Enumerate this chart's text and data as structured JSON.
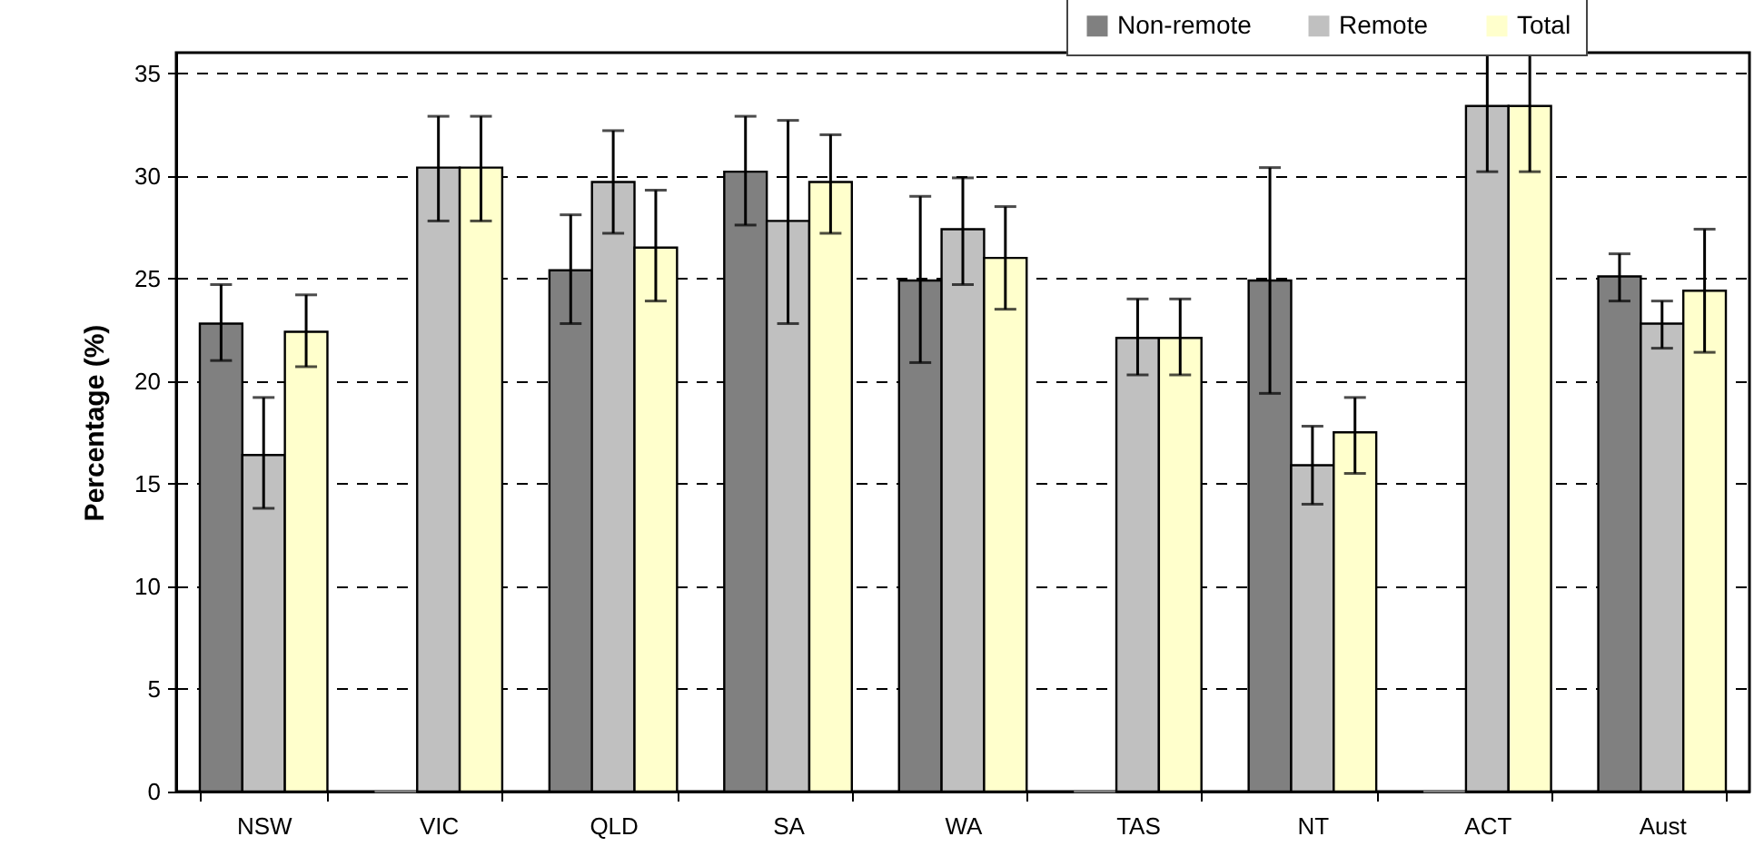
{
  "chart_data": {
    "type": "bar",
    "ylabel": "Percentage (%)",
    "categories": [
      "NSW",
      "VIC",
      "QLD",
      "SA",
      "WA",
      "TAS",
      "NT",
      "ACT",
      "Aust"
    ],
    "series": [
      {
        "name": "Non-remote",
        "color": "#808080",
        "values": [
          22.8,
          0,
          25.4,
          30.2,
          24.9,
          0,
          24.9,
          0,
          25.1
        ],
        "errors": [
          [
            21.0,
            24.7
          ],
          null,
          [
            22.8,
            28.1
          ],
          [
            27.6,
            32.9
          ],
          [
            20.9,
            29.0
          ],
          null,
          [
            19.4,
            30.4
          ],
          null,
          [
            23.9,
            26.2
          ]
        ]
      },
      {
        "name": "Remote",
        "color": "#c0c0c0",
        "values": [
          16.4,
          30.4,
          29.7,
          27.8,
          27.4,
          22.1,
          15.9,
          33.4,
          22.8
        ],
        "errors": [
          [
            13.8,
            19.2
          ],
          [
            27.8,
            32.9
          ],
          [
            27.2,
            32.2
          ],
          [
            22.8,
            32.7
          ],
          [
            24.7,
            29.9
          ],
          [
            20.3,
            24.0
          ],
          [
            14.0,
            17.8
          ],
          [
            30.2,
            36
          ],
          [
            21.6,
            23.9
          ]
        ]
      },
      {
        "name": "Total",
        "color": "#ffffcc",
        "values": [
          22.4,
          30.4,
          26.5,
          29.7,
          26.0,
          22.1,
          17.5,
          33.4,
          24.4
        ],
        "errors": [
          [
            20.7,
            24.2
          ],
          [
            27.8,
            32.9
          ],
          [
            23.9,
            29.3
          ],
          [
            27.2,
            32.0
          ],
          [
            23.5,
            28.5
          ],
          [
            20.3,
            24.0
          ],
          [
            15.5,
            19.2
          ],
          [
            30.2,
            36
          ],
          [
            21.4,
            27.4
          ]
        ]
      }
    ],
    "ylim": [
      0,
      36
    ],
    "yticks": [
      0,
      5,
      10,
      15,
      20,
      25,
      30,
      35
    ],
    "grid": "y",
    "legend": "top right"
  }
}
